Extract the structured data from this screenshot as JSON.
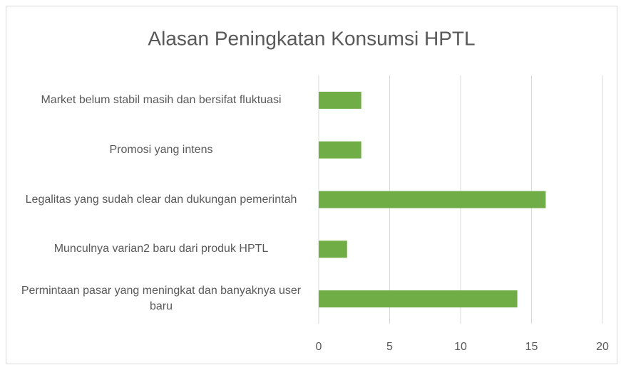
{
  "chart_data": {
    "type": "bar",
    "orientation": "horizontal",
    "title": "Alasan Peningkatan Konsumsi HPTL",
    "categories": [
      "Market belum stabil masih dan bersifat fluktuasi",
      "Promosi yang intens",
      "Legalitas yang sudah clear dan dukungan pemerintah",
      "Munculnya varian2 baru dari produk HPTL",
      "Permintaan pasar yang meningkat dan banyaknya user baru"
    ],
    "values": [
      3,
      3,
      16,
      2,
      14
    ],
    "color": "#70ad47",
    "xlim": [
      0,
      20
    ],
    "xticks": [
      0,
      5,
      10,
      15,
      20
    ],
    "grid": true
  }
}
